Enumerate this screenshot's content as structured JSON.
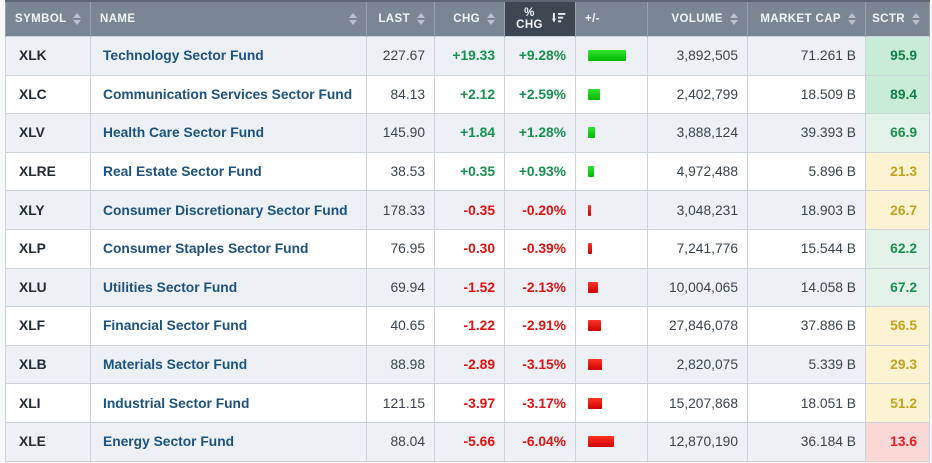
{
  "table": {
    "columns": [
      {
        "key": "symbol",
        "label": "SYMBOL",
        "align": "left",
        "sortable": true,
        "sorted": false
      },
      {
        "key": "name",
        "label": "NAME",
        "align": "left",
        "sortable": true,
        "sorted": false
      },
      {
        "key": "last",
        "label": "LAST",
        "align": "right",
        "sortable": true,
        "sorted": false
      },
      {
        "key": "chg",
        "label": "CHG",
        "align": "right",
        "sortable": true,
        "sorted": false
      },
      {
        "key": "pct_chg",
        "label": "% CHG",
        "align": "right",
        "sortable": true,
        "sorted": true,
        "sort_direction": "desc"
      },
      {
        "key": "bar",
        "label": "+/-",
        "align": "left",
        "sortable": false,
        "sorted": false
      },
      {
        "key": "volume",
        "label": "VOLUME",
        "align": "right",
        "sortable": true,
        "sorted": false
      },
      {
        "key": "market_cap",
        "label": "MARKET CAP",
        "align": "right",
        "sortable": true,
        "sorted": false
      },
      {
        "key": "sctr",
        "label": "SCTR",
        "align": "right",
        "sortable": true,
        "sorted": false
      }
    ],
    "rows": [
      {
        "symbol": "XLK",
        "name": "Technology Sector Fund",
        "last": "227.67",
        "chg": "+19.33",
        "pct_chg": "+9.28%",
        "pct_value": 9.28,
        "direction": "up",
        "volume": "3,892,505",
        "market_cap": "71.261 B",
        "sctr": "95.9",
        "sctr_band": "strong_up"
      },
      {
        "symbol": "XLC",
        "name": "Communication Services Sector Fund",
        "last": "84.13",
        "chg": "+2.12",
        "pct_chg": "+2.59%",
        "pct_value": 2.59,
        "direction": "up",
        "volume": "2,402,799",
        "market_cap": "18.509 B",
        "sctr": "89.4",
        "sctr_band": "strong_up"
      },
      {
        "symbol": "XLV",
        "name": "Health Care Sector Fund",
        "last": "145.90",
        "chg": "+1.84",
        "pct_chg": "+1.28%",
        "pct_value": 1.28,
        "direction": "up",
        "volume": "3,888,124",
        "market_cap": "39.393 B",
        "sctr": "66.9",
        "sctr_band": "up"
      },
      {
        "symbol": "XLRE",
        "name": "Real Estate Sector Fund",
        "last": "38.53",
        "chg": "+0.35",
        "pct_chg": "+0.93%",
        "pct_value": 0.93,
        "direction": "up",
        "volume": "4,972,488",
        "market_cap": "5.896 B",
        "sctr": "21.3",
        "sctr_band": "neutral"
      },
      {
        "symbol": "XLY",
        "name": "Consumer Discretionary Sector Fund",
        "last": "178.33",
        "chg": "-0.35",
        "pct_chg": "-0.20%",
        "pct_value": -0.2,
        "direction": "down",
        "volume": "3,048,231",
        "market_cap": "18.903 B",
        "sctr": "26.7",
        "sctr_band": "neutral"
      },
      {
        "symbol": "XLP",
        "name": "Consumer Staples Sector Fund",
        "last": "76.95",
        "chg": "-0.30",
        "pct_chg": "-0.39%",
        "pct_value": -0.39,
        "direction": "down",
        "volume": "7,241,776",
        "market_cap": "15.544 B",
        "sctr": "62.2",
        "sctr_band": "up"
      },
      {
        "symbol": "XLU",
        "name": "Utilities Sector Fund",
        "last": "69.94",
        "chg": "-1.52",
        "pct_chg": "-2.13%",
        "pct_value": -2.13,
        "direction": "down",
        "volume": "10,004,065",
        "market_cap": "14.058 B",
        "sctr": "67.2",
        "sctr_band": "up"
      },
      {
        "symbol": "XLF",
        "name": "Financial Sector Fund",
        "last": "40.65",
        "chg": "-1.22",
        "pct_chg": "-2.91%",
        "pct_value": -2.91,
        "direction": "down",
        "volume": "27,846,078",
        "market_cap": "37.886 B",
        "sctr": "56.5",
        "sctr_band": "neutral"
      },
      {
        "symbol": "XLB",
        "name": "Materials Sector Fund",
        "last": "88.98",
        "chg": "-2.89",
        "pct_chg": "-3.15%",
        "pct_value": -3.15,
        "direction": "down",
        "volume": "2,820,075",
        "market_cap": "5.339 B",
        "sctr": "29.3",
        "sctr_band": "neutral"
      },
      {
        "symbol": "XLI",
        "name": "Industrial Sector Fund",
        "last": "121.15",
        "chg": "-3.97",
        "pct_chg": "-3.17%",
        "pct_value": -3.17,
        "direction": "down",
        "volume": "15,207,868",
        "market_cap": "18.051 B",
        "sctr": "51.2",
        "sctr_band": "neutral"
      },
      {
        "symbol": "XLE",
        "name": "Energy Sector Fund",
        "last": "88.04",
        "chg": "-5.66",
        "pct_chg": "-6.04%",
        "pct_value": -6.04,
        "direction": "down",
        "volume": "12,870,190",
        "market_cap": "36.184 B",
        "sctr": "13.6",
        "sctr_band": "down"
      }
    ]
  },
  "colors": {
    "header_bg": "#7b8694",
    "header_sorted_bg": "#3e4651",
    "header_text": "#f2f4f6",
    "up_text": "#15904e",
    "down_text": "#e01111",
    "bar_up": "#00cc00",
    "bar_down": "#ee0000",
    "link_text": "#1b5280",
    "symbol_text": "#222b36",
    "number_text": "#3a444f",
    "row_odd_bg": "#edf1f5",
    "row_even_bg": "#ffffff",
    "grid_line": "#ccd4da"
  },
  "sctr_bands": {
    "strong_up": {
      "bg": "#c9ecd9",
      "text": "#0f7f45"
    },
    "up": {
      "bg": "#e3f3ea",
      "text": "#169150"
    },
    "neutral": {
      "bg": "#fcf3d2",
      "text": "#c3a31d"
    },
    "down": {
      "bg": "#f9d8d6",
      "text": "#ea1c24"
    }
  }
}
